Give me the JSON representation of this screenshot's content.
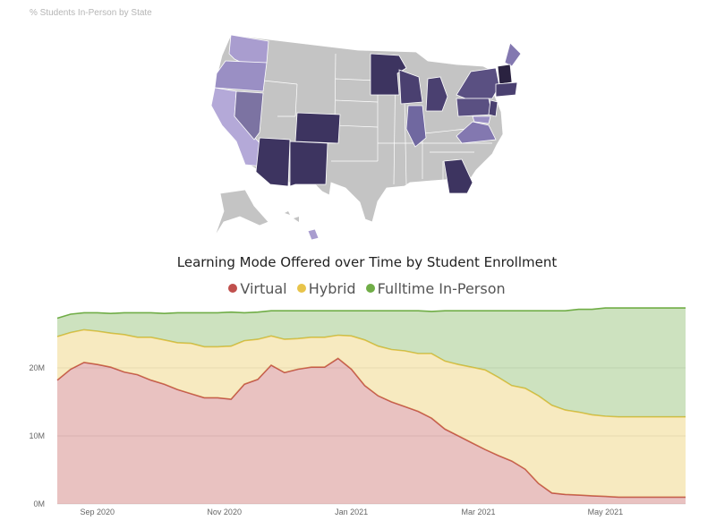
{
  "map": {
    "title": "% Students In-Person by State",
    "colors": {
      "gray": "#c4c4c4",
      "dark": "#3d3460",
      "mid": "#6e6496",
      "light": "#a99dcf"
    }
  },
  "chart_data": {
    "type": "area",
    "title": "Learning Mode Offered over Time by Student Enrollment",
    "stacked": true,
    "x_ticks": [
      "Sep 2020",
      "Nov 2020",
      "Jan 2021",
      "Mar 2021",
      "May 2021"
    ],
    "y_ticks": [
      "0M",
      "10M",
      "20M"
    ],
    "ylim": [
      0,
      30
    ],
    "xlim": [
      0,
      47
    ],
    "legend_position": "top",
    "grid": true,
    "x": [
      0,
      1,
      2,
      3,
      4,
      5,
      6,
      7,
      8,
      9,
      10,
      11,
      12,
      13,
      14,
      15,
      16,
      17,
      18,
      19,
      20,
      21,
      22,
      23,
      24,
      25,
      26,
      27,
      28,
      29,
      30,
      31,
      32,
      33,
      34,
      35,
      36,
      37,
      38,
      39,
      40,
      41,
      42,
      43,
      44,
      45,
      46,
      47
    ],
    "series": [
      {
        "name": "Virtual",
        "color": "#c0504d",
        "values": [
          18.2,
          19.8,
          20.8,
          20.5,
          20.1,
          19.4,
          19.0,
          18.2,
          17.6,
          16.8,
          16.2,
          15.6,
          15.6,
          15.4,
          17.6,
          18.3,
          20.4,
          19.3,
          19.8,
          20.1,
          20.1,
          21.4,
          19.8,
          17.4,
          15.9,
          15.0,
          14.3,
          13.6,
          12.6,
          11.0,
          10.0,
          9.0,
          8.0,
          7.1,
          6.3,
          5.1,
          3.0,
          1.6,
          1.4,
          1.3,
          1.2,
          1.1,
          1.0,
          1.0,
          1.0,
          1.0,
          1.0,
          1.0
        ]
      },
      {
        "name": "Hybrid",
        "color": "#e8c44a",
        "values": [
          6.4,
          5.4,
          4.8,
          4.9,
          5.0,
          5.5,
          5.5,
          6.3,
          6.5,
          6.9,
          7.4,
          7.5,
          7.5,
          7.8,
          6.4,
          5.9,
          4.3,
          4.9,
          4.5,
          4.4,
          4.4,
          3.4,
          4.9,
          6.7,
          7.3,
          7.7,
          8.2,
          8.5,
          9.5,
          10.0,
          10.5,
          11.1,
          11.7,
          11.5,
          11.1,
          11.9,
          12.9,
          12.9,
          12.4,
          12.2,
          11.9,
          11.8,
          11.8,
          11.8,
          11.8,
          11.8,
          11.8,
          11.8
        ]
      },
      {
        "name": "Fulltime In-Person",
        "color": "#70ad47",
        "values": [
          2.7,
          2.7,
          2.5,
          2.7,
          2.9,
          3.2,
          3.6,
          3.6,
          3.9,
          4.4,
          4.5,
          5.0,
          5.0,
          5.0,
          4.1,
          4.0,
          3.7,
          4.2,
          4.1,
          3.9,
          3.9,
          3.6,
          3.7,
          4.3,
          5.2,
          5.7,
          5.9,
          6.3,
          6.2,
          7.4,
          7.9,
          8.3,
          8.7,
          9.8,
          11.0,
          11.4,
          12.5,
          13.9,
          14.6,
          15.1,
          15.5,
          15.9,
          16.0,
          16.0,
          16.0,
          16.0,
          16.0,
          16.0
        ]
      }
    ]
  }
}
